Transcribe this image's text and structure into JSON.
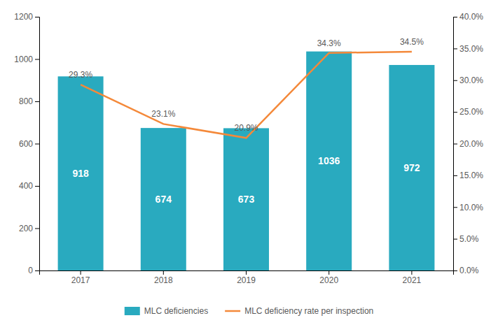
{
  "chart_data": {
    "type": "bar",
    "categories": [
      "2017",
      "2018",
      "2019",
      "2020",
      "2021"
    ],
    "series": [
      {
        "name": "MLC deficiencies",
        "type": "bar",
        "color": "#29AABF",
        "values": [
          918,
          674,
          673,
          1036,
          972
        ],
        "data_labels": true
      },
      {
        "name": "MLC deficiency rate per inspection",
        "type": "line",
        "axis": "y2",
        "color": "#F4893A",
        "values": [
          0.293,
          0.231,
          0.209,
          0.343,
          0.345
        ],
        "value_labels": [
          "29.3%",
          "23.1%",
          "20.9%",
          "34.3%",
          "34.5%"
        ],
        "data_labels": true
      }
    ],
    "ylim": [
      0,
      1200
    ],
    "yticks": [
      0,
      200,
      400,
      600,
      800,
      1000,
      1200
    ],
    "y2lim": [
      0,
      0.4
    ],
    "y2ticks": [
      {
        "value": 0.0,
        "label": "0.0%"
      },
      {
        "value": 0.05,
        "label": "5.0%"
      },
      {
        "value": 0.1,
        "label": "10.0%"
      },
      {
        "value": 0.15,
        "label": "15.0%"
      },
      {
        "value": 0.2,
        "label": "20.0%"
      },
      {
        "value": 0.25,
        "label": "25.0%"
      },
      {
        "value": 0.3,
        "label": "30.0%"
      },
      {
        "value": 0.35,
        "label": "35.0%"
      },
      {
        "value": 0.4,
        "label": "40.0%"
      }
    ],
    "grid": false,
    "legend": "bottom"
  }
}
